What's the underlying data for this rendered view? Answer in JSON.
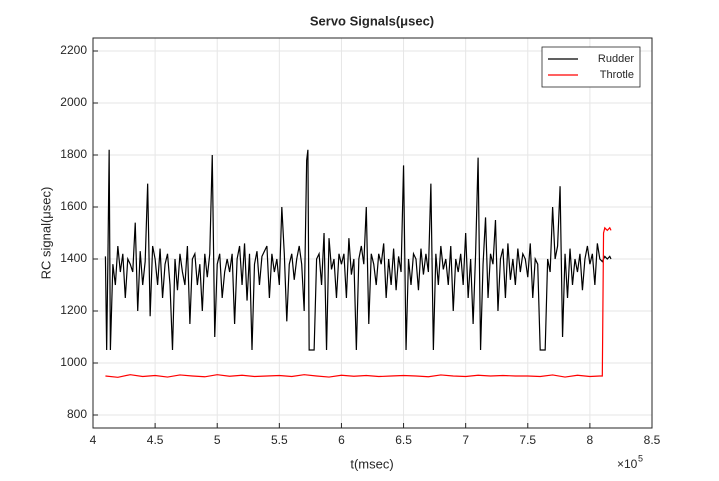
{
  "chart_data": {
    "type": "line",
    "title": "Servo Signals(μsec)",
    "x_label": "t(msec)",
    "y_label": "RC signal(μsec)",
    "x_exponent_base": "×10",
    "x_exponent": "5",
    "xlim": [
      400000,
      850000
    ],
    "xticks": [
      {
        "value": 400000,
        "label": "4"
      },
      {
        "value": 450000,
        "label": "4.5"
      },
      {
        "value": 500000,
        "label": "5"
      },
      {
        "value": 550000,
        "label": "5.5"
      },
      {
        "value": 600000,
        "label": "6"
      },
      {
        "value": 650000,
        "label": "6.5"
      },
      {
        "value": 700000,
        "label": "7"
      },
      {
        "value": 750000,
        "label": "7.5"
      },
      {
        "value": 800000,
        "label": "8"
      },
      {
        "value": 850000,
        "label": "8.5"
      }
    ],
    "ylim": [
      750,
      2250
    ],
    "yticks": [
      800,
      1000,
      1200,
      1400,
      1600,
      1800,
      2000,
      2200
    ],
    "grid": true,
    "legend_position": "northeast",
    "series": [
      {
        "name": "Rudder",
        "color": "#000000",
        "x": [
          410000,
          411000,
          412000,
          413000,
          414000,
          416000,
          418000,
          420000,
          422000,
          424000,
          426000,
          428000,
          430000,
          432000,
          434000,
          436000,
          438000,
          440000,
          442000,
          444000,
          446000,
          448000,
          450000,
          452000,
          454000,
          456000,
          458000,
          460000,
          462000,
          464000,
          466000,
          468000,
          470000,
          472000,
          474000,
          476000,
          478000,
          480000,
          482000,
          484000,
          486000,
          488000,
          490000,
          492000,
          494000,
          496000,
          498000,
          500000,
          502000,
          504000,
          506000,
          508000,
          510000,
          512000,
          514000,
          516000,
          518000,
          520000,
          522000,
          524000,
          526000,
          528000,
          530000,
          532000,
          534000,
          536000,
          540000,
          542000,
          544000,
          546000,
          548000,
          550000,
          552000,
          554000,
          556000,
          558000,
          560000,
          562000,
          564000,
          566000,
          568000,
          570000,
          572000,
          573000,
          574000,
          578000,
          580000,
          582000,
          584000,
          586000,
          588000,
          590000,
          592000,
          594000,
          596000,
          598000,
          600000,
          602000,
          604000,
          606000,
          608000,
          610000,
          612000,
          614000,
          616000,
          618000,
          620000,
          622000,
          624000,
          626000,
          628000,
          630000,
          632000,
          634000,
          636000,
          638000,
          640000,
          642000,
          644000,
          646000,
          648000,
          650000,
          652000,
          654000,
          656000,
          658000,
          660000,
          662000,
          664000,
          666000,
          668000,
          670000,
          672000,
          674000,
          676000,
          678000,
          680000,
          682000,
          684000,
          686000,
          688000,
          690000,
          692000,
          694000,
          696000,
          698000,
          700000,
          702000,
          704000,
          706000,
          708000,
          710000,
          712000,
          714000,
          716000,
          718000,
          720000,
          722000,
          724000,
          726000,
          728000,
          730000,
          732000,
          734000,
          736000,
          738000,
          740000,
          742000,
          744000,
          746000,
          748000,
          750000,
          752000,
          754000,
          756000,
          758000,
          760000,
          764000,
          766000,
          768000,
          770000,
          772000,
          774000,
          776000,
          778000,
          780000,
          782000,
          784000,
          786000,
          788000,
          790000,
          792000,
          794000,
          796000,
          798000,
          800000,
          802000,
          804000,
          806000,
          808000,
          810000,
          812000,
          814000,
          816000,
          817000
        ],
        "values": [
          1410,
          1050,
          1400,
          1820,
          1050,
          1380,
          1300,
          1450,
          1350,
          1420,
          1250,
          1400,
          1380,
          1350,
          1540,
          1200,
          1430,
          1300,
          1390,
          1690,
          1180,
          1450,
          1400,
          1300,
          1440,
          1250,
          1380,
          1420,
          1300,
          1050,
          1400,
          1280,
          1420,
          1350,
          1300,
          1450,
          1150,
          1400,
          1420,
          1300,
          1380,
          1200,
          1420,
          1330,
          1420,
          1800,
          1100,
          1380,
          1420,
          1250,
          1350,
          1400,
          1350,
          1420,
          1150,
          1400,
          1450,
          1300,
          1460,
          1240,
          1420,
          1050,
          1380,
          1430,
          1300,
          1410,
          1450,
          1250,
          1420,
          1350,
          1400,
          1300,
          1600,
          1420,
          1160,
          1380,
          1420,
          1320,
          1400,
          1450,
          1380,
          1200,
          1780,
          1820,
          1050,
          1050,
          1400,
          1420,
          1300,
          1500,
          1050,
          1480,
          1360,
          1400,
          1250,
          1420,
          1380,
          1420,
          1250,
          1480,
          1340,
          1400,
          1050,
          1400,
          1450,
          1380,
          1600,
          1150,
          1420,
          1380,
          1300,
          1420,
          1380,
          1460,
          1250,
          1400,
          1300,
          1440,
          1280,
          1410,
          1350,
          1760,
          1050,
          1400,
          1300,
          1420,
          1400,
          1280,
          1440,
          1340,
          1420,
          1350,
          1690,
          1050,
          1420,
          1300,
          1450,
          1360,
          1400,
          1300,
          1450,
          1200,
          1400,
          1350,
          1420,
          1300,
          1500,
          1250,
          1400,
          1150,
          1420,
          1790,
          1050,
          1380,
          1560,
          1250,
          1420,
          1380,
          1550,
          1200,
          1400,
          1440,
          1250,
          1460,
          1320,
          1400,
          1300,
          1440,
          1350,
          1420,
          1400,
          1330,
          1460,
          1250,
          1400,
          1380,
          1050,
          1050,
          1400,
          1350,
          1600,
          1400,
          1450,
          1680,
          1100,
          1420,
          1250,
          1440,
          1300,
          1400,
          1350,
          1420,
          1280,
          1400,
          1450,
          1380,
          1420,
          1300,
          1460,
          1400,
          1390,
          1410,
          1400,
          1410,
          1400
        ]
      },
      {
        "name": "Throtle",
        "color": "#ff0000",
        "x": [
          410000,
          420000,
          430000,
          440000,
          450000,
          460000,
          470000,
          480000,
          490000,
          500000,
          510000,
          520000,
          530000,
          540000,
          550000,
          560000,
          570000,
          580000,
          590000,
          600000,
          610000,
          620000,
          630000,
          640000,
          650000,
          660000,
          670000,
          680000,
          690000,
          700000,
          710000,
          720000,
          730000,
          740000,
          750000,
          760000,
          770000,
          780000,
          790000,
          800000,
          808000,
          810000,
          811000,
          812000,
          814000,
          816000,
          817000
        ],
        "values": [
          950,
          945,
          955,
          948,
          952,
          946,
          954,
          950,
          947,
          955,
          949,
          953,
          948,
          950,
          952,
          948,
          955,
          950,
          946,
          953,
          949,
          952,
          948,
          950,
          952,
          950,
          947,
          954,
          950,
          948,
          953,
          950,
          952,
          950,
          950,
          948,
          954,
          946,
          953,
          948,
          950,
          950,
          1500,
          1520,
          1510,
          1520,
          1510
        ]
      }
    ]
  }
}
